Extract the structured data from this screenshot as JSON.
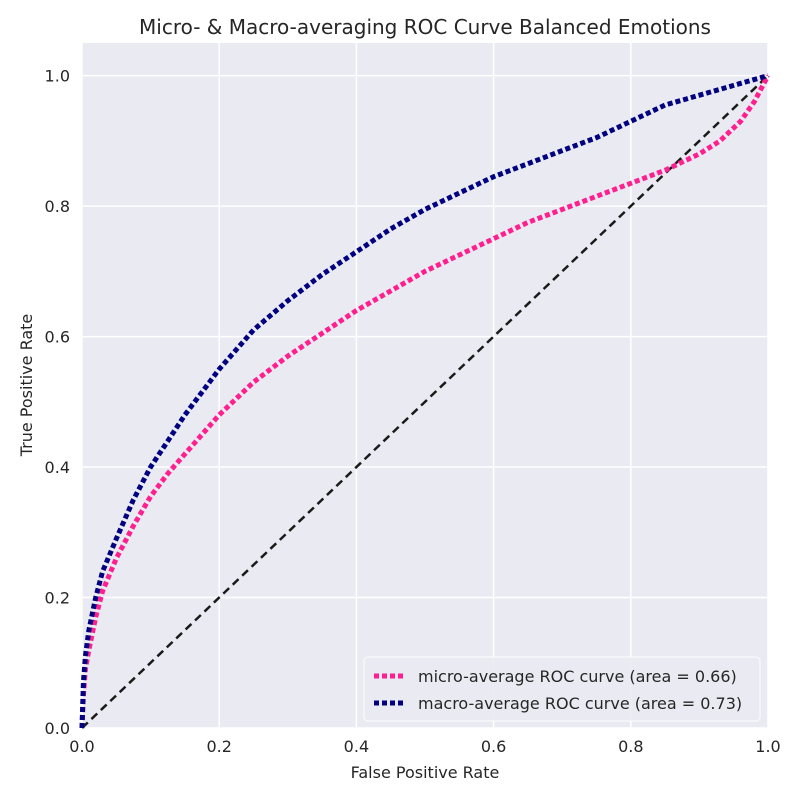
{
  "chart_data": {
    "type": "line",
    "title": "Micro- & Macro-averaging ROC Curve Balanced Emotions",
    "xlabel": "False Positive Rate",
    "ylabel": "True Positive Rate",
    "xlim": [
      0.0,
      1.0
    ],
    "ylim": [
      0.0,
      1.05
    ],
    "x_ticks": [
      "0.0",
      "0.2",
      "0.4",
      "0.6",
      "0.8",
      "1.0"
    ],
    "y_ticks": [
      "0.0",
      "0.2",
      "0.4",
      "0.6",
      "0.8",
      "1.0"
    ],
    "grid": true,
    "legend_position": "lower-right",
    "series": [
      {
        "name": "micro-average ROC curve (area = 0.66)",
        "color": "#ff1f8e",
        "style": "dotted",
        "x": [
          0,
          0.002,
          0.005,
          0.01,
          0.02,
          0.03,
          0.05,
          0.075,
          0.1,
          0.125,
          0.15,
          0.175,
          0.2,
          0.25,
          0.3,
          0.35,
          0.4,
          0.45,
          0.5,
          0.55,
          0.6,
          0.65,
          0.7,
          0.75,
          0.8,
          0.85,
          0.9,
          0.93,
          0.96,
          0.98,
          1.0
        ],
        "y": [
          0,
          0.05,
          0.09,
          0.12,
          0.17,
          0.21,
          0.26,
          0.31,
          0.355,
          0.39,
          0.42,
          0.45,
          0.48,
          0.53,
          0.57,
          0.605,
          0.64,
          0.67,
          0.7,
          0.725,
          0.75,
          0.775,
          0.795,
          0.815,
          0.835,
          0.855,
          0.88,
          0.9,
          0.93,
          0.96,
          1.0
        ]
      },
      {
        "name": "macro-average ROC curve (area = 0.73)",
        "color": "#000080",
        "style": "dotted",
        "x": [
          0,
          0.002,
          0.005,
          0.01,
          0.02,
          0.03,
          0.05,
          0.075,
          0.1,
          0.125,
          0.15,
          0.175,
          0.2,
          0.25,
          0.3,
          0.35,
          0.4,
          0.45,
          0.5,
          0.55,
          0.6,
          0.65,
          0.7,
          0.75,
          0.8,
          0.85,
          0.9,
          0.95,
          1.0
        ],
        "y": [
          0,
          0.07,
          0.11,
          0.15,
          0.2,
          0.24,
          0.29,
          0.35,
          0.4,
          0.44,
          0.48,
          0.515,
          0.55,
          0.61,
          0.655,
          0.695,
          0.73,
          0.765,
          0.795,
          0.82,
          0.845,
          0.865,
          0.885,
          0.905,
          0.93,
          0.955,
          0.97,
          0.985,
          1.0
        ]
      }
    ],
    "reference_line": {
      "color": "#1a1a1a",
      "style": "dashed",
      "x": [
        0,
        1
      ],
      "y": [
        0,
        1
      ]
    }
  }
}
